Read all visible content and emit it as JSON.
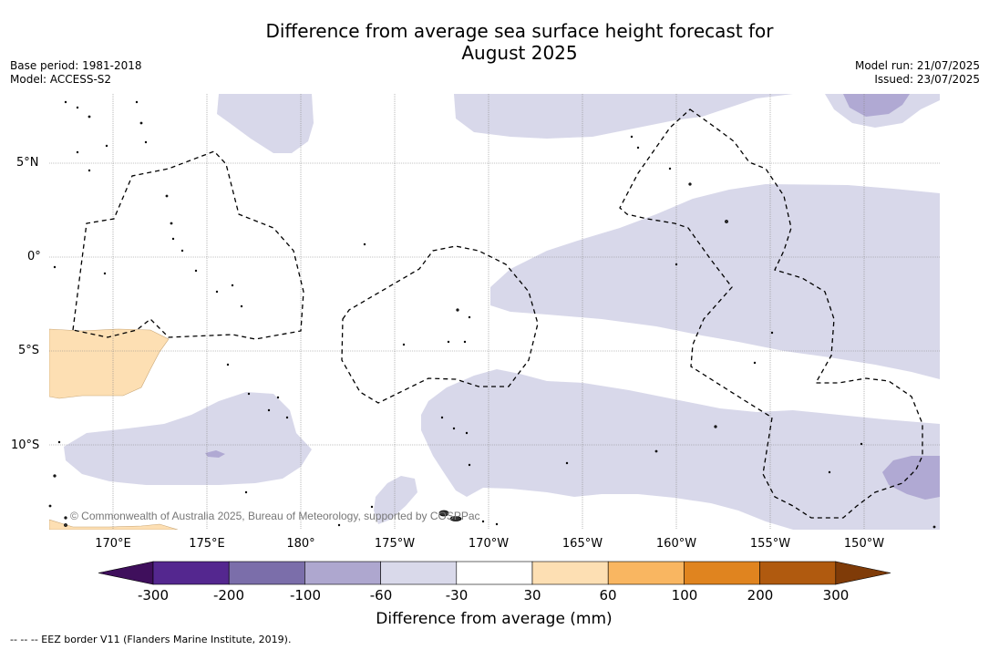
{
  "title_line1": "Difference from average sea surface height forecast for",
  "title_line2": "August 2025",
  "meta": {
    "base_period": "Base period: 1981-2018",
    "model": "Model: ACCESS-S2",
    "model_run": "Model run: 21/07/2025",
    "issued": "Issued: 23/07/2025"
  },
  "copyright": "© Commonwealth of Australia 2025, Bureau of Meteorology, supported by COSPPac",
  "lon_labels": [
    "170°E",
    "175°E",
    "180°",
    "175°W",
    "170°W",
    "165°W",
    "160°W",
    "155°W",
    "150°W"
  ],
  "lat_labels": [
    "5°N",
    "0°",
    "5°S",
    "10°S"
  ],
  "colorbar": {
    "ticks": [
      "-300",
      "-200",
      "-100",
      "-60",
      "-30",
      "30",
      "60",
      "100",
      "200",
      "300"
    ],
    "colors": [
      "#3f0f5c",
      "#54278f",
      "#7b6eaa",
      "#aea7cf",
      "#d9d9ea",
      "#ffffff",
      "#fddfb3",
      "#f9b661",
      "#e0841f",
      "#b05a0f",
      "#7f3b08"
    ],
    "title": "Difference from average (mm)"
  },
  "footnote": "--  --  -- EEZ border V11 (Flanders Marine Institute, 2019).",
  "colors": {
    "light_purple": "#d8d8ea",
    "mid_purple": "#b0a9d3",
    "light_orange": "#fddfb3",
    "gridline": "#888888"
  }
}
